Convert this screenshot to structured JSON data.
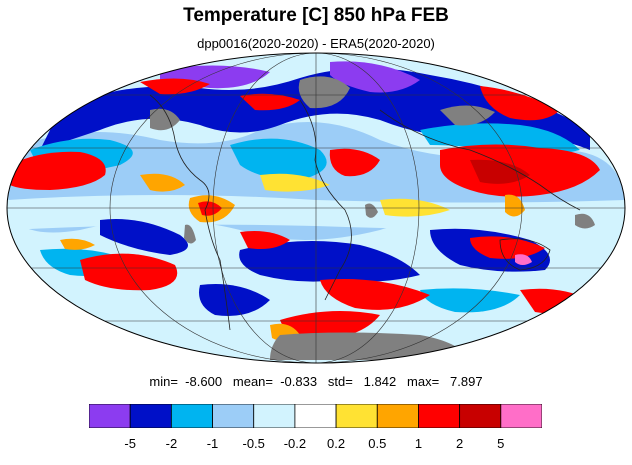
{
  "title": "Temperature [C] 850 hPa FEB",
  "subtitle": "dpp0016(2020-2020) - ERA5(2020-2020)",
  "stats": {
    "text": "min=  -8.600   mean=  -0.833   std=   1.842   max=   7.897",
    "min": -8.6,
    "mean": -0.833,
    "std": 1.842,
    "max": 7.897
  },
  "colorbar": {
    "colors": [
      "#8c3cf0",
      "#0010c8",
      "#00b4f0",
      "#9ccdf7",
      "#d2f3fe",
      "#ffffff",
      "#ffe233",
      "#ffa500",
      "#ff0000",
      "#c80000",
      "#ff6ec8"
    ],
    "labels": [
      "-5",
      "-2",
      "-1",
      "-0.5",
      "-0.2",
      "0.2",
      "0.5",
      "1",
      "2",
      "5"
    ]
  },
  "map": {
    "projection": "mollweide",
    "missing_color": "#808080",
    "field": "temperature bias 850 hPa"
  }
}
